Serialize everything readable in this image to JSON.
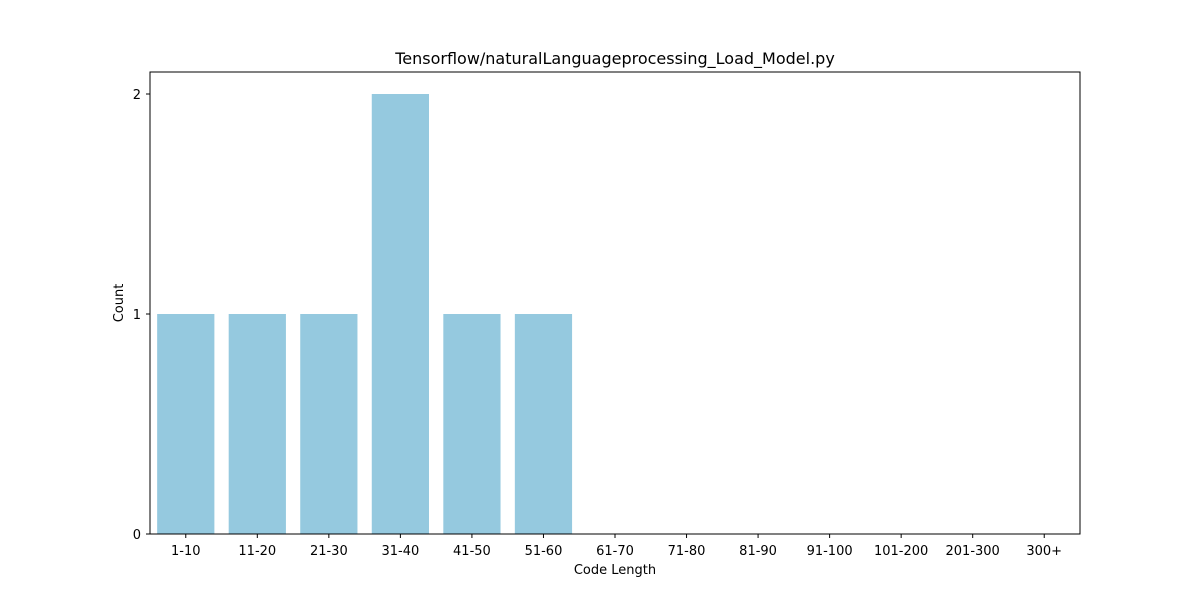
{
  "chart_data": {
    "type": "bar",
    "title": "Tensorflow/naturalLanguageprocessing_Load_Model.py",
    "xlabel": "Code Length",
    "ylabel": "Count",
    "categories": [
      "1-10",
      "11-20",
      "21-30",
      "31-40",
      "41-50",
      "51-60",
      "61-70",
      "71-80",
      "81-90",
      "91-100",
      "101-200",
      "201-300",
      "300+"
    ],
    "values": [
      1,
      1,
      1,
      2,
      1,
      1,
      0,
      0,
      0,
      0,
      0,
      0,
      0
    ],
    "ylim": [
      0,
      2.1
    ],
    "yticks": [
      0,
      1,
      2
    ],
    "bar_color": "#95c9df",
    "grid": false,
    "legend": "none"
  }
}
